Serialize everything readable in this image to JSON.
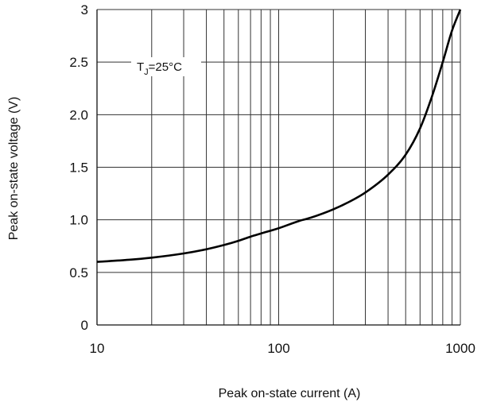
{
  "chart_data": {
    "type": "line",
    "title": "",
    "xlabel": "Peak on-state current (A)",
    "ylabel": "Peak on-state voltage (V)",
    "x_scale": "log",
    "xlim": [
      10,
      1000
    ],
    "ylim": [
      0,
      3
    ],
    "x_ticks": [
      "10",
      "100",
      "1000"
    ],
    "y_ticks": [
      "0",
      "0.5",
      "1.0",
      "1.5",
      "2.0",
      "2.5",
      "3"
    ],
    "grid": true,
    "annotation": {
      "main": "T",
      "sub": "J",
      "rest": "=25°C"
    },
    "series": [
      {
        "x": [
          10,
          15,
          20,
          30,
          40,
          50,
          60,
          70,
          80,
          100,
          130,
          150,
          200,
          250,
          300,
          400,
          500,
          600,
          700,
          800,
          900,
          1000
        ],
        "y": [
          0.6,
          0.62,
          0.64,
          0.68,
          0.72,
          0.76,
          0.8,
          0.84,
          0.87,
          0.92,
          0.99,
          1.02,
          1.1,
          1.18,
          1.26,
          1.43,
          1.62,
          1.87,
          2.18,
          2.5,
          2.8,
          3.0
        ]
      }
    ]
  }
}
